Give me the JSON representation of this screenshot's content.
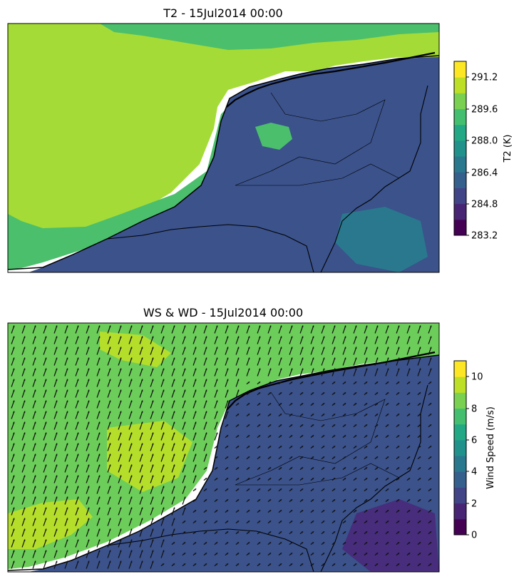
{
  "panels": [
    {
      "title": "T2 - 15Jul2014 00:00",
      "colorbar": {
        "label": "T2 (K)",
        "ticks": [
          "283.2",
          "284.8",
          "286.4",
          "288.0",
          "289.6",
          "291.2"
        ],
        "colors": [
          "#440154",
          "#482475",
          "#414487",
          "#355f8d",
          "#2a788e",
          "#21918c",
          "#22a884",
          "#44bf70",
          "#7ad151",
          "#bddf26",
          "#fde725"
        ]
      }
    },
    {
      "title": "WS & WD - 15Jul2014 00:00",
      "colorbar": {
        "label": "Wind Speed (m/s)",
        "ticks": [
          "0",
          "2",
          "4",
          "6",
          "8",
          "10"
        ],
        "colors": [
          "#440154",
          "#482475",
          "#414487",
          "#355f8d",
          "#2a788e",
          "#21918c",
          "#22a884",
          "#44bf70",
          "#7ad151",
          "#bddf26",
          "#fde725"
        ]
      }
    }
  ],
  "colors": {
    "sea_t2": "#a5db36",
    "coast_t2": "#4bbf6c",
    "land_t2": "#3b528b",
    "land_t2_warm": "#2a788e",
    "sea_ws": "#6ccd5a",
    "sea_ws_strong": "#b5de2b",
    "land_ws": "#3b528b",
    "land_ws_calm": "#472d7b",
    "arrow": "#111111",
    "border": "#000000"
  }
}
